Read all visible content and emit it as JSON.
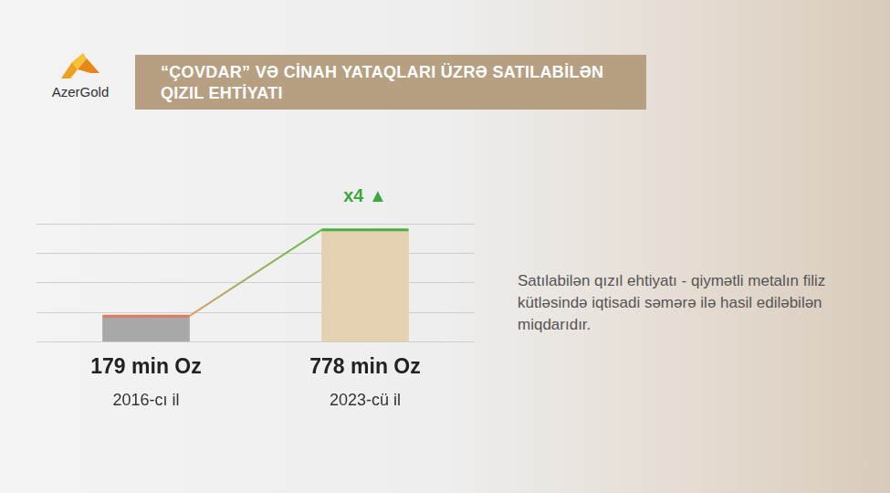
{
  "logo": "AzerGold",
  "description": "Satılabilən qızıl ehtiyatı - qiymətli metalın filiz kütləsində iqtisadi səmərə ilə hasil ediləbilən miqdarıdır.",
  "chart_data": {
    "type": "bar",
    "title": "“ÇOVDAR” VƏ CİNAH YATAQLARI ÜZRƏ SATILABİLƏN QIZIL EHTİYATI",
    "annotation": "x4 ▲",
    "categories": [
      "2016-cı il",
      "2023-cü il"
    ],
    "values": [
      179,
      778
    ],
    "value_labels": [
      "179 min Oz",
      "778 min Oz"
    ],
    "colors": [
      "#a8a8a8",
      "#e6d2b2"
    ],
    "ylim": [
      0,
      820
    ],
    "yticks": [
      0,
      205,
      410,
      615,
      820
    ],
    "grid": true,
    "data_labels": true,
    "tick_labels": "x"
  }
}
